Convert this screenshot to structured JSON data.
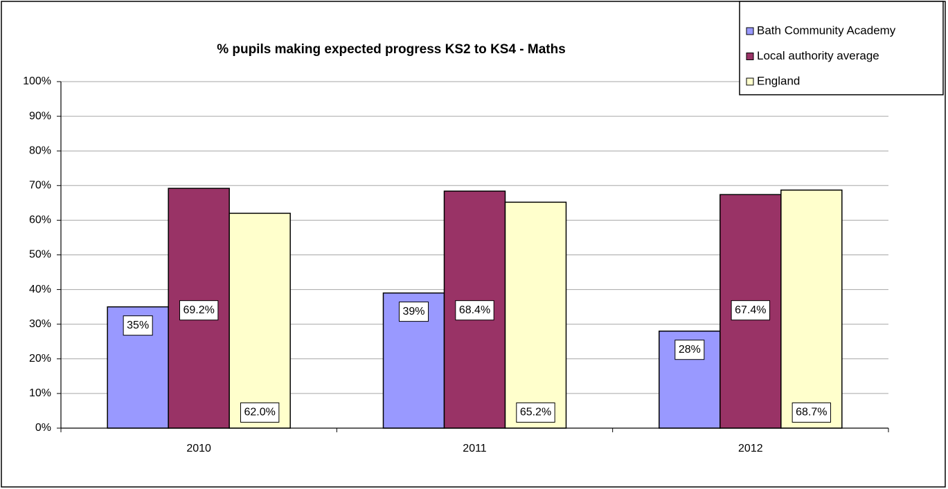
{
  "chart_data": {
    "type": "bar",
    "title": "% pupils making expected progress KS2 to KS4 - Maths",
    "categories": [
      "2010",
      "2011",
      "2012"
    ],
    "series": [
      {
        "name": "Bath Community Academy",
        "color": "#9999ff",
        "values": [
          35,
          39,
          28
        ],
        "value_labels": [
          "35%",
          "39%",
          "28%"
        ]
      },
      {
        "name": "Local authority average",
        "color": "#993366",
        "values": [
          69.2,
          68.4,
          67.4
        ],
        "value_labels": [
          "69.2%",
          "68.4%",
          "67.4%"
        ]
      },
      {
        "name": "England",
        "color": "#ffffcc",
        "values": [
          62.0,
          65.2,
          68.7
        ],
        "value_labels": [
          "62.0%",
          "65.2%",
          "68.7%"
        ]
      }
    ],
    "ylim": [
      0,
      100
    ],
    "yticks": [
      {
        "value": 0,
        "label": "0%"
      },
      {
        "value": 10,
        "label": "10%"
      },
      {
        "value": 20,
        "label": "20%"
      },
      {
        "value": 30,
        "label": "30%"
      },
      {
        "value": 40,
        "label": "40%"
      },
      {
        "value": 50,
        "label": "50%"
      },
      {
        "value": 60,
        "label": "60%"
      },
      {
        "value": 70,
        "label": "70%"
      },
      {
        "value": 80,
        "label": "80%"
      },
      {
        "value": 90,
        "label": "90%"
      },
      {
        "value": 100,
        "label": "100%"
      }
    ],
    "grid": true,
    "legend": "top-right"
  }
}
